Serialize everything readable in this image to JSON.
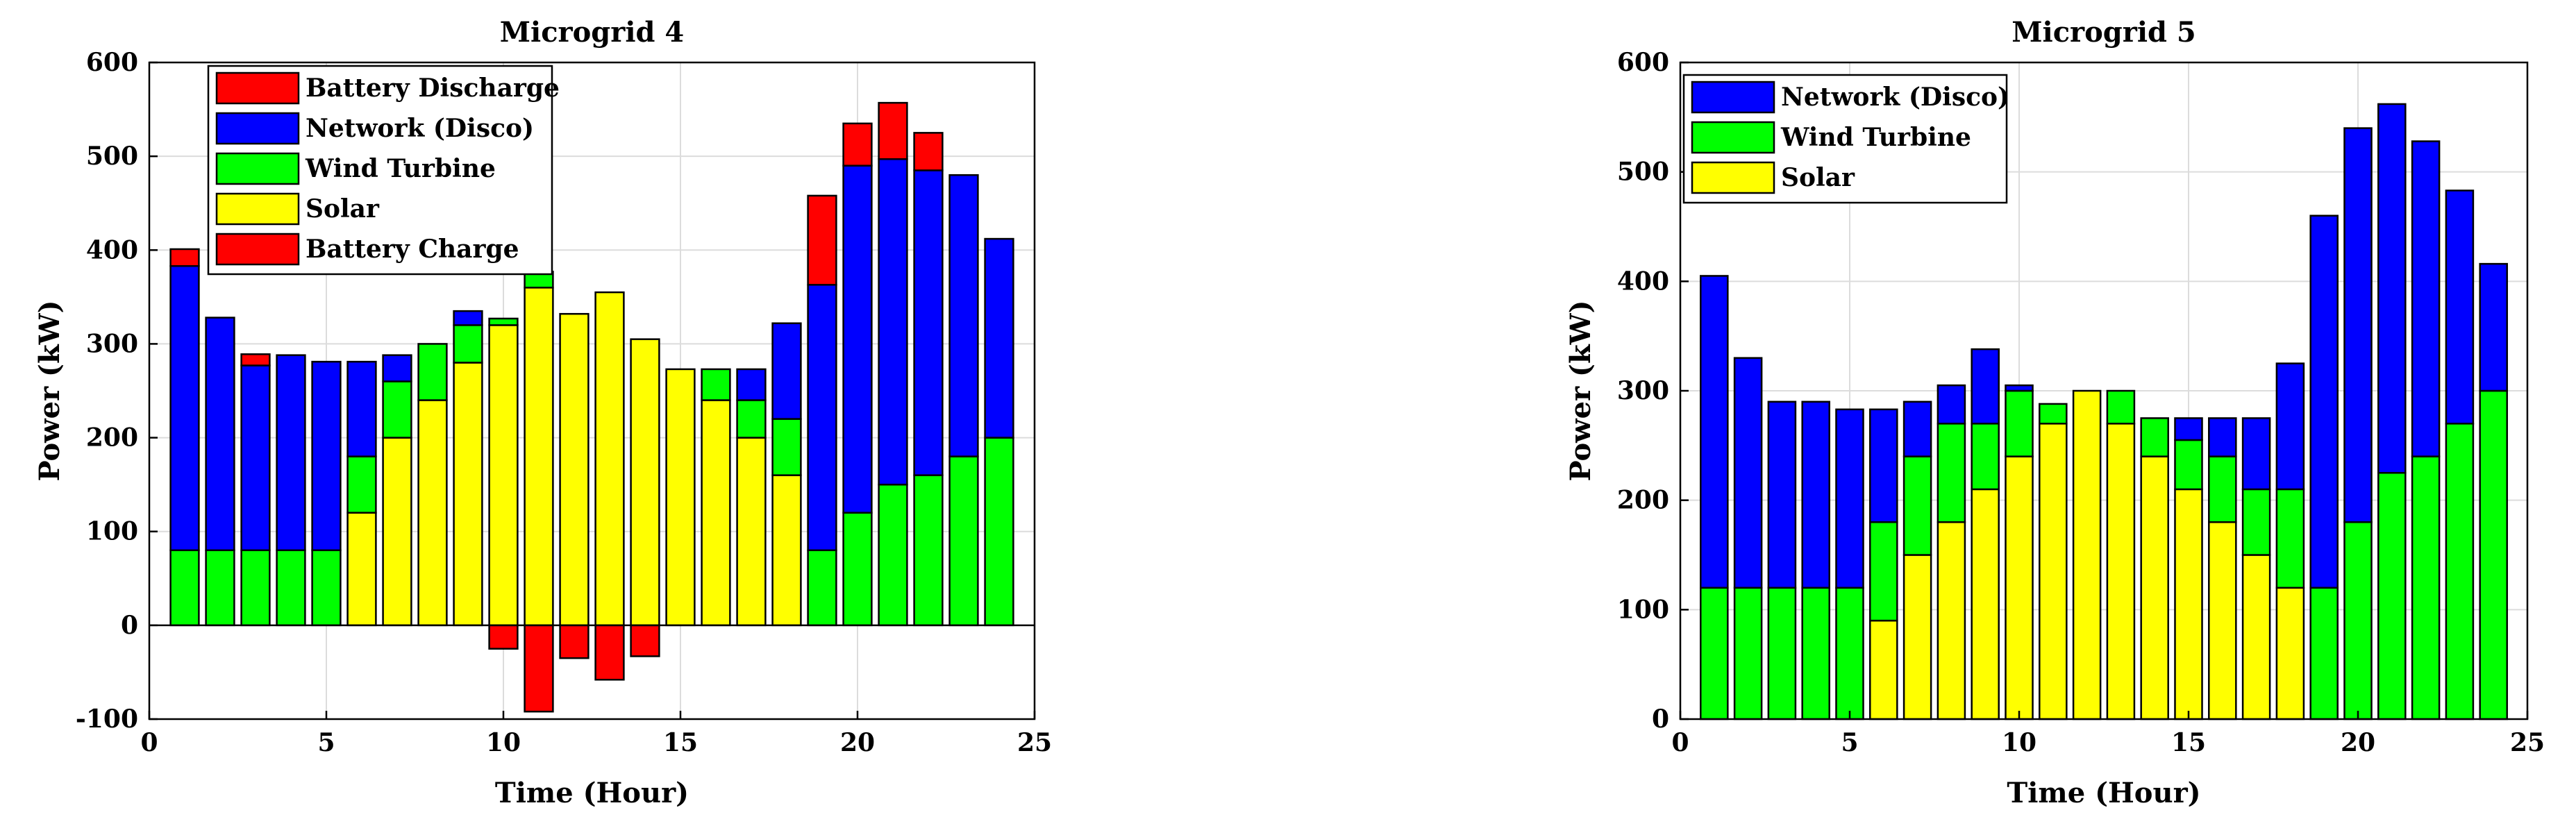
{
  "charts": [
    {
      "title": "Microgrid 4",
      "xlabel": "Time (Hour)",
      "ylabel": "Power (kW)",
      "xticks": [
        "0",
        "5",
        "10",
        "15",
        "20",
        "25"
      ],
      "yticks": [
        "-100",
        "0",
        "100",
        "200",
        "300",
        "400",
        "500",
        "600"
      ],
      "legend": [
        "Battery Discharge",
        "Network (Disco)",
        "Wind Turbine",
        "Solar",
        "Battery Charge"
      ]
    },
    {
      "title": "Microgrid 5",
      "xlabel": "Time (Hour)",
      "ylabel": "Power (kW)",
      "xticks": [
        "0",
        "5",
        "10",
        "15",
        "20",
        "25"
      ],
      "yticks": [
        "0",
        "100",
        "200",
        "300",
        "400",
        "500",
        "600"
      ],
      "legend": [
        "Network (Disco)",
        "Wind Turbine",
        "Solar"
      ]
    }
  ],
  "colors": {
    "battery_discharge": "#ff0000",
    "network": "#0000ff",
    "wind": "#00ff00",
    "solar": "#ffff00",
    "battery_charge": "#ff0000",
    "grid": "#dcdcdc"
  },
  "chart_data": [
    {
      "type": "bar",
      "stacked": true,
      "title": "Microgrid 4",
      "xlabel": "Time (Hour)",
      "ylabel": "Power (kW)",
      "xlim": [
        0,
        25
      ],
      "ylim": [
        -100,
        600
      ],
      "grid": true,
      "legend_position": "top-left",
      "x": [
        1,
        2,
        3,
        4,
        5,
        6,
        7,
        8,
        9,
        10,
        11,
        12,
        13,
        14,
        15,
        16,
        17,
        18,
        19,
        20,
        21,
        22,
        23,
        24
      ],
      "series": [
        {
          "name": "Solar",
          "color": "#ffff00",
          "values": [
            0,
            0,
            0,
            0,
            0,
            120,
            200,
            240,
            280,
            320,
            360,
            332,
            355,
            305,
            273,
            240,
            200,
            160,
            0,
            0,
            0,
            0,
            0,
            0
          ]
        },
        {
          "name": "Wind Turbine",
          "color": "#00ff00",
          "values": [
            80,
            80,
            80,
            80,
            80,
            60,
            60,
            60,
            40,
            7,
            17,
            0,
            0,
            0,
            0,
            33,
            40,
            60,
            80,
            120,
            150,
            160,
            180,
            200
          ]
        },
        {
          "name": "Network (Disco)",
          "color": "#0000ff",
          "values": [
            303,
            248,
            197,
            208,
            201,
            101,
            28,
            0,
            15,
            0,
            0,
            0,
            0,
            0,
            0,
            0,
            33,
            102,
            283,
            370,
            347,
            325,
            300,
            212
          ]
        },
        {
          "name": "Battery Discharge",
          "color": "#ff0000",
          "values": [
            18,
            0,
            12,
            0,
            0,
            0,
            0,
            0,
            0,
            0,
            0,
            0,
            0,
            0,
            0,
            0,
            0,
            0,
            95,
            45,
            60,
            40,
            0,
            0
          ]
        },
        {
          "name": "Battery Charge",
          "color": "#ff0000",
          "values": [
            0,
            0,
            0,
            0,
            0,
            0,
            0,
            0,
            0,
            -25,
            -92,
            -35,
            -58,
            -33,
            0,
            0,
            0,
            0,
            0,
            0,
            0,
            0,
            0,
            0
          ]
        }
      ]
    },
    {
      "type": "bar",
      "stacked": true,
      "title": "Microgrid 5",
      "xlabel": "Time (Hour)",
      "ylabel": "Power (kW)",
      "xlim": [
        0,
        25
      ],
      "ylim": [
        0,
        600
      ],
      "grid": true,
      "legend_position": "top-left",
      "x": [
        1,
        2,
        3,
        4,
        5,
        6,
        7,
        8,
        9,
        10,
        11,
        12,
        13,
        14,
        15,
        16,
        17,
        18,
        19,
        20,
        21,
        22,
        23,
        24
      ],
      "series": [
        {
          "name": "Solar",
          "color": "#ffff00",
          "values": [
            0,
            0,
            0,
            0,
            0,
            90,
            150,
            180,
            210,
            240,
            270,
            300,
            270,
            240,
            210,
            180,
            150,
            120,
            0,
            0,
            0,
            0,
            0,
            0
          ]
        },
        {
          "name": "Wind Turbine",
          "color": "#00ff00",
          "values": [
            120,
            120,
            120,
            120,
            120,
            90,
            90,
            90,
            60,
            60,
            18,
            0,
            30,
            35,
            45,
            60,
            60,
            90,
            120,
            180,
            225,
            240,
            270,
            300
          ]
        },
        {
          "name": "Network (Disco)",
          "color": "#0000ff",
          "values": [
            285,
            210,
            170,
            170,
            163,
            103,
            50,
            35,
            68,
            5,
            0,
            0,
            0,
            0,
            20,
            35,
            65,
            115,
            340,
            360,
            337,
            288,
            213,
            116
          ]
        }
      ]
    }
  ]
}
